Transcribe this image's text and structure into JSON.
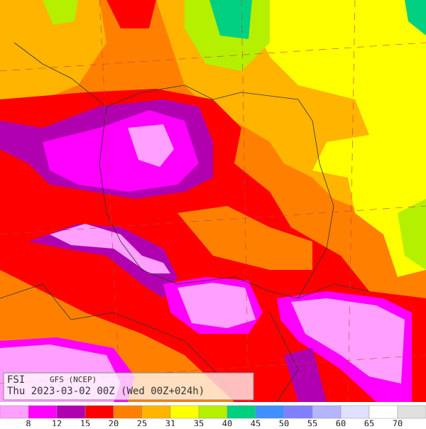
{
  "map": {
    "title": "FSI",
    "model": "GFS (NCEP)",
    "valid": "Thu 2023-03-02 00Z (Wed 00Z+024h)"
  },
  "legend": {
    "levels": [
      8,
      12,
      15,
      20,
      25,
      31,
      35,
      40,
      45,
      50,
      55,
      60,
      65,
      70
    ],
    "colors": [
      "#ffa0ff",
      "#ff00ff",
      "#b000b0",
      "#ff0000",
      "#ff8000",
      "#ffb400",
      "#ffff00",
      "#b4f000",
      "#00d080",
      "#4090ff",
      "#8080ff",
      "#b4b4ff",
      "#e0e0ff",
      "#ffffff",
      "#e0e0e0"
    ]
  }
}
